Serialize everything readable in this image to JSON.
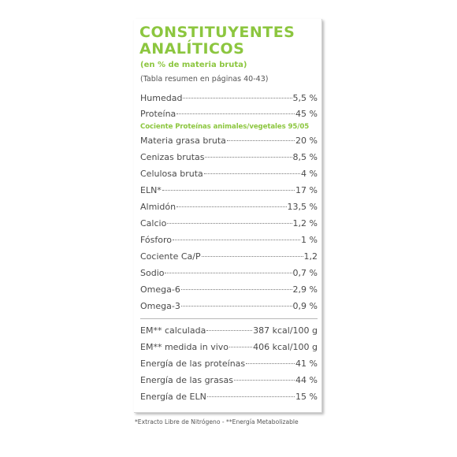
{
  "title_line1": "CONSTITUYENTES",
  "title_line2": "ANALÍTICOS",
  "subtitle": "(en % de materia bruta)",
  "reference": "(Tabla resumen en páginas 40-43)",
  "rows_group1": [
    {
      "label": "Humedad",
      "value": "5,5 %"
    },
    {
      "label": "Proteína",
      "value": "45 %"
    }
  ],
  "ratio_note": "Cociente Proteínas animales/vegetales 95/05",
  "rows_group2": [
    {
      "label": "Materia grasa bruta",
      "value": "20 %"
    },
    {
      "label": "Cenizas brutas",
      "value": "8,5 %"
    },
    {
      "label": "Celulosa bruta",
      "value": "4 %"
    },
    {
      "label": "ELN*",
      "value": "17 %"
    },
    {
      "label": "Almidón",
      "value": "13,5 %"
    },
    {
      "label": "Calcio",
      "value": "1,2 %"
    },
    {
      "label": "Fósforo",
      "value": "1 %"
    },
    {
      "label": "Cociente Ca/P",
      "value": "1,2"
    },
    {
      "label": "Sodio",
      "value": "0,7 %"
    },
    {
      "label": "Omega-6",
      "value": "2,9 %"
    },
    {
      "label": "Omega-3",
      "value": "0,9 %"
    }
  ],
  "rows_energy": [
    {
      "label": "EM** calculada",
      "value": "387 kcal/100 g"
    },
    {
      "label": "EM** medida in vivo",
      "value": "406 kcal/100 g"
    },
    {
      "label": "Energía de las proteínas",
      "value": "41 %"
    },
    {
      "label": "Energía de las grasas",
      "value": "44 %"
    },
    {
      "label": "Energía de ELN",
      "value": "15 %"
    }
  ],
  "footnote": "*Extracto Libre de Nitrógeno - **Energía Metabolizable",
  "colors": {
    "accent": "#8cc63f",
    "text": "#4a4a4a",
    "muted": "#555555"
  }
}
